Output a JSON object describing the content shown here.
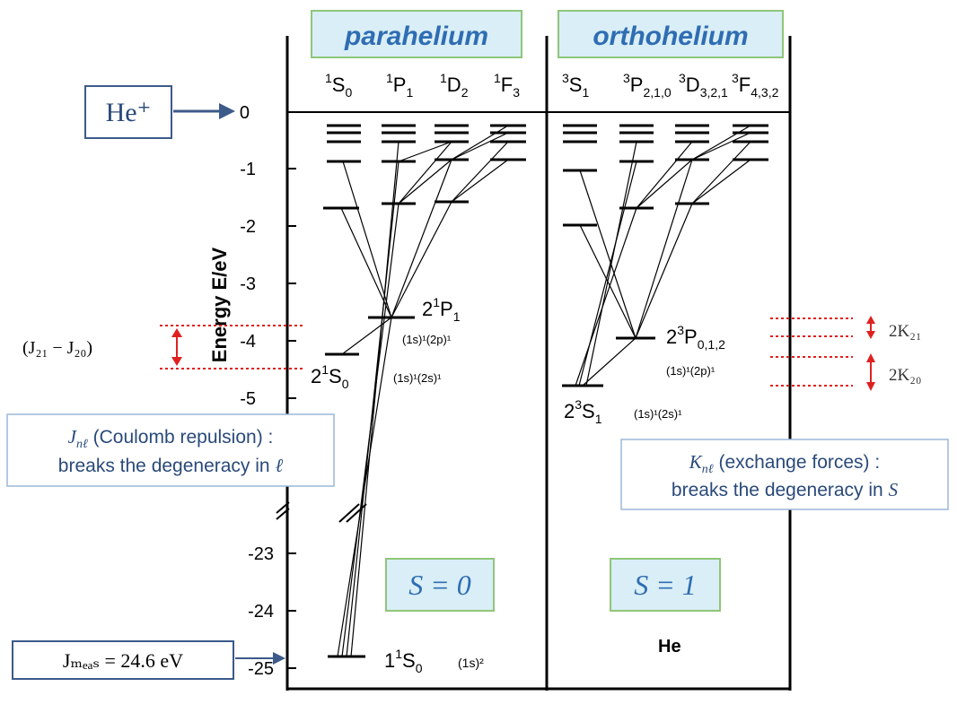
{
  "axis": {
    "label": "Energy E/eV",
    "ticks_upper": [
      "0",
      "-1",
      "-2",
      "-3",
      "-4",
      "-5"
    ],
    "ticks_lower": [
      "-23",
      "-24",
      "-25"
    ]
  },
  "para": {
    "header": "parahelium",
    "columns": [
      {
        "sup": "1",
        "letter": "S",
        "sub": "0"
      },
      {
        "sup": "1",
        "letter": "P",
        "sub": "1"
      },
      {
        "sup": "1",
        "letter": "D",
        "sub": "2"
      },
      {
        "sup": "1",
        "letter": "F",
        "sub": "3"
      }
    ],
    "label_2p": {
      "n": "2",
      "sup": "1",
      "letter": "P",
      "sub": "1"
    },
    "config_2p": "(1s)¹(2p)¹",
    "label_2s": {
      "n": "2",
      "sup": "1",
      "letter": "S",
      "sub": "0"
    },
    "config_2s": "(1s)¹(2s)¹",
    "label_1s": {
      "n": "1",
      "sup": "1",
      "letter": "S",
      "sub": "0"
    },
    "config_1s": "(1s)²",
    "spin_box": "S = 0"
  },
  "ortho": {
    "header": "orthohelium",
    "columns": [
      {
        "sup": "3",
        "letter": "S",
        "sub": "1"
      },
      {
        "sup": "3",
        "letter": "P",
        "sub": "2,1,0"
      },
      {
        "sup": "3",
        "letter": "D",
        "sub": "3,2,1"
      },
      {
        "sup": "3",
        "letter": "F",
        "sub": "4,3,2"
      }
    ],
    "label_2p": {
      "n": "2",
      "sup": "3",
      "letter": "P",
      "sub": "0,1,2"
    },
    "config_2p": "(1s)¹(2p)¹",
    "label_2s": {
      "n": "2",
      "sup": "3",
      "letter": "S",
      "sub": "1"
    },
    "config_2s": "(1s)¹(2s)¹",
    "spin_box": "S = 1",
    "atom": "He"
  },
  "annotations": {
    "ion_box": "He⁺",
    "j_diff": "(J₂₁ − J₂₀)",
    "j_note_line1_sym": "J",
    "j_note_line1_sub": "nℓ",
    "j_note_line1_text": " (Coulomb repulsion) :",
    "j_note_line2_text": "breaks the degeneracy in ",
    "j_note_line2_sym": "ℓ",
    "k_note_line1_sym": "K",
    "k_note_line1_sub": "nℓ",
    "k_note_line1_text": " (exchange forces) :",
    "k_note_line2_text": "breaks the degeneracy in ",
    "k_note_line2_sym": "S",
    "k21": "2K₂₁",
    "k20": "2K₂₀",
    "j_meas": "Jₘₑₐₛ = 24.6 eV"
  },
  "colors": {
    "frame": "#000000",
    "label_box_fill": "#d9eef6",
    "label_box_border": "#8fc67a",
    "header_text": "#2f6db3",
    "annotation_box": "#3c5a8a",
    "annotation_text": "#2a4a7a",
    "red": "#e02020"
  }
}
